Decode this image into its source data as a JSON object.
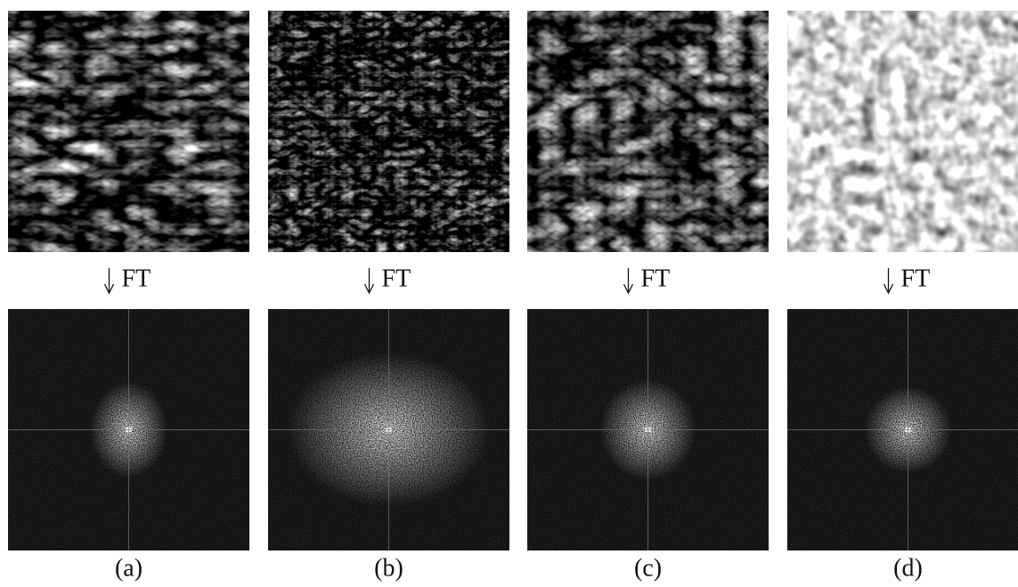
{
  "panels": [
    {
      "transform_label": "FT",
      "label": "(a)"
    },
    {
      "transform_label": "FT",
      "label": "(b)"
    },
    {
      "transform_label": "FT",
      "label": "(c)"
    },
    {
      "transform_label": "FT",
      "label": "(d)"
    }
  ]
}
